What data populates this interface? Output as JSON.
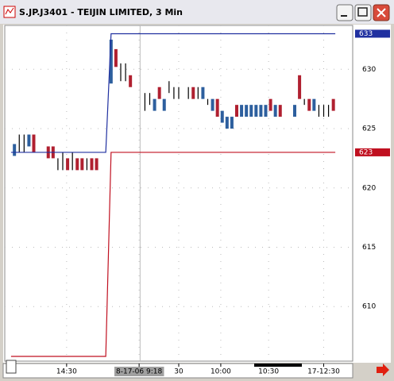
{
  "chart_data": {
    "type": "candlestick",
    "title": "S.JP.J3401 - TEIJIN LIMITED, 3 Min",
    "ylim": [
      605.4,
      633.7
    ],
    "yticks": [
      610,
      615,
      620,
      625,
      630
    ],
    "xlim": [
      -1,
      71
    ],
    "xticks": [
      {
        "value": 11.8,
        "label": "14:30"
      },
      {
        "value": 26.8,
        "label": "8-17-06  9:18"
      },
      {
        "value": 35,
        "label": "30"
      },
      {
        "value": 43.7,
        "label": "10:00"
      },
      {
        "value": 53.6,
        "label": "10:30"
      },
      {
        "value": 65,
        "label": "17-12:30"
      }
    ],
    "grid": true,
    "cursor_x": 27,
    "colors": {
      "up": "#2d5f9e",
      "down": "#b02030",
      "flat": "#000000"
    },
    "bars": {
      "x": [
        1,
        2,
        3,
        4,
        5,
        8,
        9,
        10,
        11,
        12,
        13,
        14,
        15,
        16,
        17,
        18,
        21,
        22,
        23,
        24,
        25,
        28,
        29,
        30,
        31,
        32,
        33,
        34,
        35,
        37,
        38,
        39,
        40,
        41,
        42,
        43,
        44,
        45,
        46,
        47,
        48,
        49,
        50,
        51,
        52,
        53,
        54,
        55,
        56,
        59,
        60,
        61,
        62,
        63,
        64,
        65,
        66,
        67
      ],
      "low": [
        622.7,
        623,
        623,
        623.5,
        623,
        622.5,
        622.5,
        621.5,
        621.5,
        621.5,
        621.5,
        621.5,
        621.5,
        621.5,
        621.5,
        621.5,
        628.8,
        630.2,
        629,
        629,
        628.5,
        626.5,
        627,
        626.5,
        627.5,
        626.5,
        628,
        627.5,
        627.5,
        627.5,
        627.5,
        627.5,
        627.5,
        627,
        626.5,
        626,
        625.5,
        625,
        625,
        626,
        626,
        626,
        626,
        626,
        626,
        626,
        626.5,
        626,
        626,
        626,
        627.5,
        627,
        626.5,
        626.5,
        626,
        626,
        626,
        626.5
      ],
      "high": [
        623.7,
        624.5,
        624.5,
        624.5,
        624.5,
        623.5,
        623.5,
        622.5,
        623,
        622.5,
        623,
        622.5,
        622.5,
        622.5,
        622.5,
        622.5,
        632.5,
        631.7,
        630.5,
        630.5,
        629.5,
        628,
        628,
        627.5,
        628.5,
        627.5,
        629,
        628.5,
        628.5,
        628.5,
        628.5,
        628.5,
        628.5,
        627.5,
        627.5,
        627.5,
        626.5,
        626,
        626,
        627,
        627,
        627,
        627,
        627,
        627,
        627,
        627.5,
        627,
        627,
        627,
        629.5,
        627.5,
        627.5,
        627.5,
        627,
        627,
        627,
        627.5
      ],
      "kind": [
        "up",
        "flat",
        "flat",
        "up",
        "down",
        "down",
        "down",
        "flat",
        "flat",
        "down",
        "flat",
        "down",
        "down",
        "flat",
        "down",
        "down",
        "up",
        "down",
        "flat",
        "flat",
        "down",
        "flat",
        "flat",
        "up",
        "down",
        "up",
        "flat",
        "flat",
        "flat",
        "flat",
        "down",
        "flat",
        "up",
        "flat",
        "up",
        "down",
        "up",
        "up",
        "up",
        "down",
        "up",
        "up",
        "up",
        "up",
        "up",
        "up",
        "down",
        "up",
        "down",
        "up",
        "down",
        "flat",
        "down",
        "up",
        "flat",
        "flat",
        "flat",
        "down"
      ]
    },
    "series": [
      {
        "color": "#2030a0",
        "x": [
          0.3,
          19.9,
          21,
          67.4
        ],
        "values": [
          623,
          623,
          633,
          633
        ]
      },
      {
        "color": "#c01020",
        "x": [
          0.3,
          19.9,
          21,
          67.4
        ],
        "values": [
          605.8,
          605.8,
          623,
          623
        ]
      }
    ]
  }
}
